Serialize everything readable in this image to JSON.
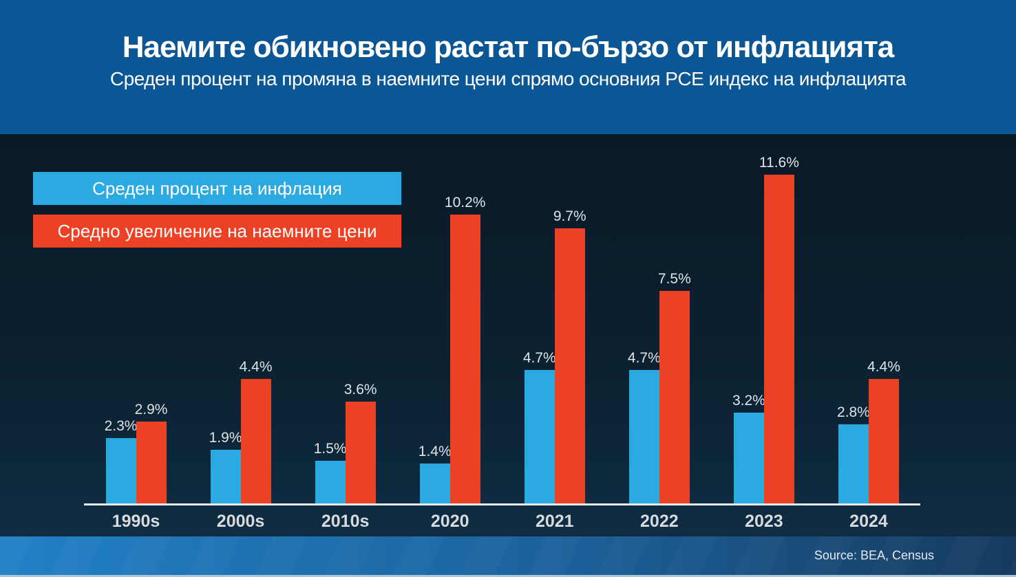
{
  "header": {
    "title": "Наемите обикновено растат по-бързо от инфлацията",
    "subtitle": "Среден процент на промяна в наемните цени спрямо основния PCE индекс на инфлацията"
  },
  "legend": {
    "items": [
      {
        "label": "Среден процент на инфлация",
        "color": "#2ba9e1"
      },
      {
        "label": "Средно увеличение на наемните цени",
        "color": "#ed4126"
      }
    ]
  },
  "chart_data": {
    "type": "bar",
    "title": "Наемите обикновено растат по-бързо от инфлацията",
    "subtitle": "Среден процент на промяна в наемните цени спрямо основния PCE индекс на инфлацията",
    "categories": [
      "1990s",
      "2000s",
      "2010s",
      "2020",
      "2021",
      "2022",
      "2023",
      "2024"
    ],
    "series": [
      {
        "name": "Среден процент на инфлация",
        "key": "inflation",
        "color": "#2ba9e1",
        "values": [
          2.3,
          1.9,
          1.5,
          1.4,
          4.7,
          4.7,
          3.2,
          2.8
        ]
      },
      {
        "name": "Средно увеличение на наемните цени",
        "key": "rent",
        "color": "#ed4126",
        "values": [
          2.9,
          4.4,
          3.6,
          10.2,
          9.7,
          7.5,
          11.6,
          4.4
        ]
      }
    ],
    "value_suffix": "%",
    "xlabel": "",
    "ylabel": "",
    "ylim": [
      0,
      12.5
    ],
    "grid": false,
    "legend_position": "top-left",
    "value_labels": "above-bars"
  },
  "footer": {
    "source": "Source: BEA, Census"
  },
  "colors": {
    "header_background": "#0b5694",
    "chart_background_top": "#0a1926",
    "chart_background_bottom": "#0f2c42",
    "axis_line": "#e9edef",
    "value_label": "#e0e4e7",
    "category_label": "#d8dbde",
    "footer_gradient_left": "#2180c6",
    "footer_gradient_right": "#163a5e",
    "bottom_strip": "#aac7da",
    "text": "#ffffff"
  }
}
